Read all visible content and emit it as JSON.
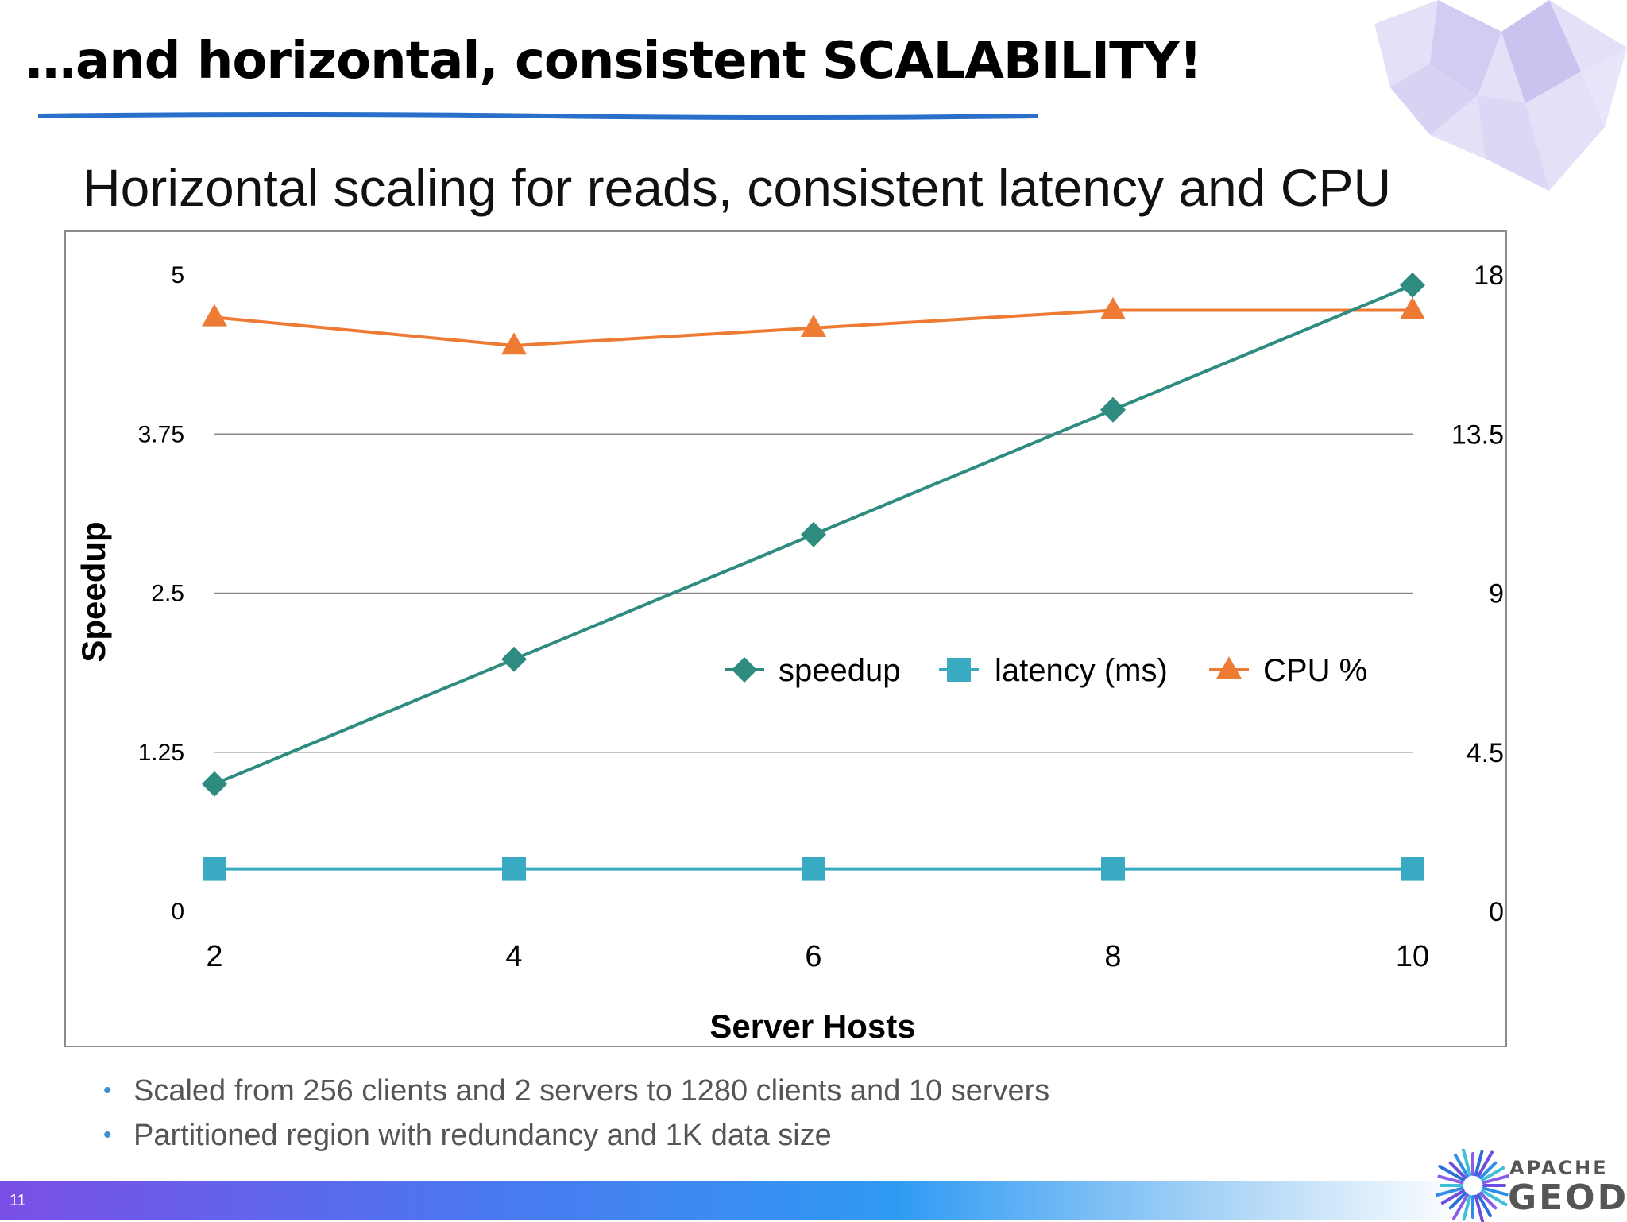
{
  "slide": {
    "title": "…and horizontal, consistent SCALABILITY!",
    "subtitle": "Horizontal scaling for reads, consistent latency and CPU",
    "bullets": [
      "Scaled from 256 clients and 2 servers to 1280 clients and 10 servers",
      "Partitioned region with redundancy and 1K data size"
    ],
    "page_number": "11",
    "logo": {
      "top": "APACHE",
      "bottom": "GEODE"
    }
  },
  "colors": {
    "speedup": "#2e8b7f",
    "latency": "#3aa9c2",
    "cpu": "#ee7b33",
    "grid": "#888888",
    "bullet": "#3a8fd6"
  },
  "chart_data": {
    "type": "line",
    "xlabel": "Server Hosts",
    "ylabel": "Speedup",
    "x": [
      2,
      4,
      6,
      8,
      10
    ],
    "x_ticks": [
      "2",
      "4",
      "6",
      "8",
      "10"
    ],
    "ylim": [
      0,
      5
    ],
    "y_ticks": [
      "0",
      "1.25",
      "2.5",
      "3.75",
      "5"
    ],
    "y2lim": [
      0,
      18
    ],
    "y2_ticks": [
      "0",
      "4.5",
      "9",
      "13.5",
      "18"
    ],
    "grid": true,
    "legend_position": "center-right",
    "series": [
      {
        "name": "speedup",
        "axis": "left",
        "marker": "diamond",
        "values": [
          1.0,
          1.98,
          2.96,
          3.94,
          4.92
        ]
      },
      {
        "name": "latency (ms)",
        "axis": "right",
        "marker": "square",
        "values": [
          1.2,
          1.2,
          1.2,
          1.2,
          1.2
        ]
      },
      {
        "name": "CPU %",
        "axis": "right",
        "marker": "triangle",
        "values": [
          16.8,
          16.0,
          16.5,
          17.0,
          17.0
        ]
      }
    ]
  }
}
